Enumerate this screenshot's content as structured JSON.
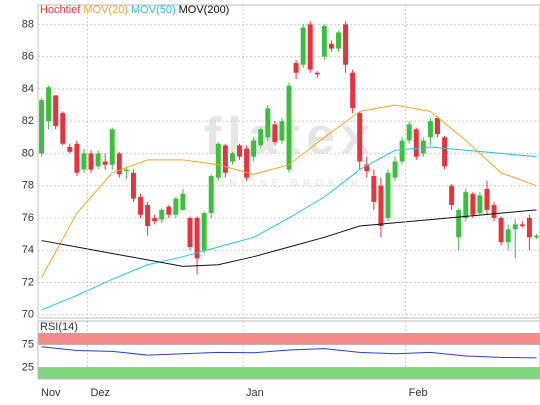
{
  "chart_data": [
    {
      "type": "candlestick",
      "title": "Hochtief",
      "title_color": "#e8333c",
      "up_color": "#3cbf3c",
      "down_color": "#e8333c",
      "categories": [
        "Nov",
        null,
        null,
        null,
        null,
        null,
        null,
        "Dez",
        null,
        null,
        null,
        null,
        null,
        null,
        null,
        null,
        null,
        null,
        null,
        null,
        null,
        null,
        null,
        null,
        null,
        null,
        null,
        null,
        null,
        "Jan",
        null,
        null,
        null,
        null,
        null,
        null,
        null,
        null,
        null,
        null,
        null,
        null,
        null,
        null,
        null,
        null,
        null,
        null,
        null,
        null,
        null,
        null,
        "Feb",
        null,
        null,
        null,
        null,
        null,
        null,
        null,
        null,
        null,
        null,
        null,
        null,
        null,
        null,
        null,
        null,
        null,
        null
      ],
      "open": [
        80.0,
        82.0,
        83.6,
        82.5,
        80.4,
        80.6,
        79.0,
        80.0,
        79.2,
        79.5,
        79.3,
        80.0,
        78.9,
        78.8,
        77.3,
        76.8,
        76.0,
        75.9,
        76.7,
        76.2,
        76.5,
        76.0,
        76.0,
        74.0,
        76.3,
        78.5,
        80.5,
        79.5,
        80.5,
        80.3,
        79.8,
        80.5,
        81.0,
        81.8,
        80.8,
        79.0,
        85.6,
        85.5,
        88.0,
        85.0,
        86.0,
        86.8,
        86.5,
        88.0,
        85.0,
        82.5,
        79.3,
        78.6,
        78.0,
        76.0,
        78.5,
        79.5,
        80.8,
        81.5,
        80.0,
        81.0,
        82.2,
        81.0,
        78.0,
        74.8,
        76.0,
        77.5,
        76.3,
        77.8,
        76.8,
        76.0,
        74.5,
        75.3,
        75.6,
        76.0,
        74.8
      ],
      "high": [
        83.4,
        84.2,
        83.6,
        82.6,
        80.6,
        80.8,
        80.3,
        80.2,
        80.2,
        80.0,
        81.6,
        80.1,
        79.2,
        79.0,
        77.5,
        77.0,
        76.2,
        76.6,
        76.8,
        77.3,
        77.8,
        76.1,
        76.1,
        76.4,
        78.7,
        80.7,
        80.6,
        80.1,
        80.6,
        80.5,
        81.0,
        81.6,
        83.0,
        82.0,
        82.2,
        84.4,
        85.8,
        88.0,
        88.2,
        85.1,
        88.0,
        87.0,
        87.6,
        88.2,
        85.2,
        82.6,
        79.8,
        79.0,
        78.5,
        79.0,
        79.8,
        81.0,
        82.0,
        81.6,
        81.0,
        82.2,
        82.3,
        81.1,
        78.1,
        76.6,
        77.8,
        77.6,
        77.6,
        78.3,
        77.0,
        76.1,
        75.6,
        75.9,
        75.8,
        76.2,
        75.0
      ],
      "low": [
        79.8,
        81.5,
        81.5,
        80.5,
        80.0,
        78.6,
        78.8,
        78.8,
        79.0,
        79.0,
        79.0,
        78.5,
        78.4,
        77.0,
        76.0,
        74.9,
        75.6,
        75.7,
        76.0,
        76.0,
        76.5,
        74.0,
        72.5,
        73.8,
        76.0,
        78.3,
        78.5,
        79.3,
        79.6,
        78.3,
        79.5,
        80.3,
        80.8,
        80.5,
        80.6,
        78.8,
        84.6,
        85.3,
        85.0,
        84.7,
        85.8,
        86.3,
        86.3,
        85.0,
        82.5,
        79.0,
        78.5,
        76.5,
        74.8,
        75.8,
        78.3,
        79.3,
        80.6,
        79.6,
        79.8,
        80.5,
        81.0,
        79.0,
        76.5,
        74.0,
        75.8,
        76.0,
        76.2,
        76.2,
        75.8,
        74.3,
        74.0,
        73.5,
        75.4,
        74.0,
        74.7
      ],
      "close": [
        83.3,
        84.1,
        81.7,
        80.6,
        80.1,
        78.8,
        80.0,
        79.0,
        80.0,
        79.3,
        81.5,
        78.7,
        79.0,
        77.2,
        76.2,
        75.5,
        75.8,
        76.5,
        76.2,
        77.2,
        77.5,
        74.2,
        73.5,
        76.3,
        78.6,
        80.6,
        78.8,
        80.0,
        79.8,
        78.5,
        80.8,
        81.5,
        82.8,
        80.7,
        82.0,
        84.2,
        85.0,
        87.8,
        85.2,
        84.9,
        87.9,
        86.5,
        87.5,
        85.5,
        82.8,
        79.5,
        78.9,
        77.0,
        75.5,
        78.8,
        79.5,
        80.8,
        81.8,
        79.8,
        80.8,
        82.0,
        81.2,
        79.2,
        76.8,
        76.5,
        77.6,
        76.2,
        77.4,
        76.5,
        76.0,
        74.5,
        75.3,
        75.6,
        75.5,
        74.8,
        74.9
      ],
      "overlays": [
        {
          "name": "MOV(20)",
          "color": "#f5a623",
          "x": [
            0,
            5,
            10,
            15,
            20,
            25,
            30,
            35,
            40,
            45,
            50,
            55,
            60,
            65,
            70
          ],
          "values": [
            72.3,
            76.3,
            78.8,
            79.6,
            79.6,
            79.3,
            78.7,
            79.3,
            81.0,
            82.6,
            83.0,
            82.6,
            80.8,
            78.8,
            78.0
          ]
        },
        {
          "name": "MOV(50)",
          "color": "#22c4e0",
          "x": [
            0,
            5,
            10,
            15,
            20,
            25,
            30,
            35,
            40,
            45,
            50,
            55,
            60,
            65,
            70
          ],
          "values": [
            70.3,
            71.2,
            72.2,
            73.1,
            73.6,
            74.2,
            74.8,
            76.0,
            77.3,
            79.0,
            80.2,
            80.4,
            80.2,
            80.0,
            79.8
          ]
        },
        {
          "name": "MOV(200)",
          "color": "#111111",
          "x": [
            0,
            5,
            10,
            15,
            20,
            25,
            30,
            35,
            40,
            45,
            50,
            55,
            60,
            65,
            70
          ],
          "values": [
            74.6,
            74.2,
            73.8,
            73.4,
            73.0,
            73.1,
            73.6,
            74.2,
            74.8,
            75.5,
            75.7,
            75.9,
            76.1,
            76.3,
            76.5
          ]
        }
      ],
      "ylim": [
        69.8,
        89.2
      ],
      "yticks": [
        70,
        72,
        74,
        76,
        78,
        80,
        82,
        84,
        86,
        88
      ],
      "grid": true,
      "watermark": "flatex",
      "watermark_sub": "ONLINE BROKER"
    },
    {
      "type": "line",
      "title": "RSI(14)",
      "color": "#2b3fd1",
      "x": [
        0,
        5,
        10,
        15,
        20,
        25,
        30,
        35,
        40,
        45,
        50,
        55,
        60,
        65,
        70
      ],
      "values": [
        70,
        62,
        60,
        52,
        55,
        58,
        57,
        63,
        66,
        58,
        55,
        58,
        50,
        47,
        46
      ],
      "xlim": [
        -0.5,
        70.5
      ],
      "ylim": [
        0,
        100
      ],
      "yticks": [
        25,
        75
      ],
      "band_colors": [
        "#7ed67e",
        "#f58a8a"
      ]
    }
  ]
}
